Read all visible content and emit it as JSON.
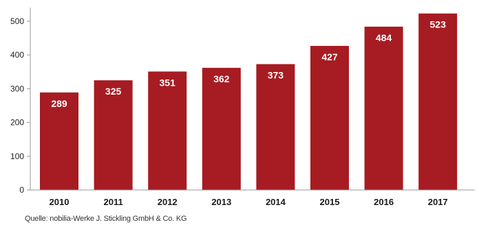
{
  "chart_data": {
    "type": "bar",
    "categories": [
      "2010",
      "2011",
      "2012",
      "2013",
      "2014",
      "2015",
      "2016",
      "2017"
    ],
    "values": [
      289,
      325,
      351,
      362,
      373,
      427,
      484,
      523
    ],
    "ylim": [
      0,
      500
    ],
    "yticks": [
      0,
      100,
      200,
      300,
      400,
      500
    ],
    "grid": false,
    "bar_color": "#a61c22",
    "value_label_color": "#ffffff"
  },
  "source": "Quelle: nobilia-Werke J. Stickling GmbH & Co. KG"
}
